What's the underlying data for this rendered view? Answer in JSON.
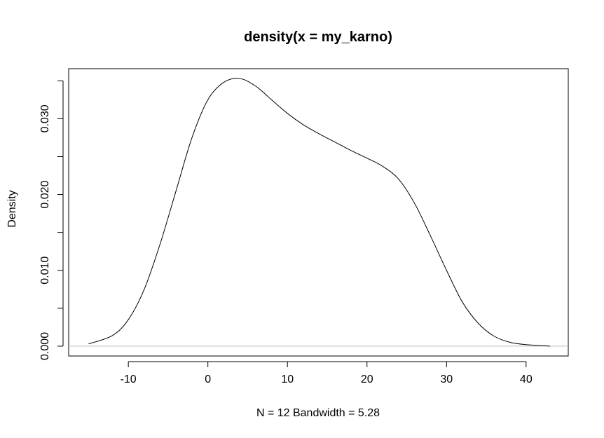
{
  "chart_data": {
    "type": "line",
    "title": "density(x = my_karno)",
    "xlabel": "N = 12   Bandwidth = 5.28",
    "ylabel": "Density",
    "xlim": [
      -17.5,
      45.3
    ],
    "ylim": [
      -0.0013,
      0.0366
    ],
    "x_ticks": [
      -10,
      0,
      10,
      20,
      30,
      40
    ],
    "x_tick_labels": [
      "-10",
      "0",
      "10",
      "20",
      "30",
      "40"
    ],
    "y_ticks": [
      0.0,
      0.005,
      0.01,
      0.015,
      0.02,
      0.025,
      0.03,
      0.035
    ],
    "y_tick_labels": [
      "0.000",
      "",
      "0.010",
      "",
      "0.020",
      "",
      "0.030",
      ""
    ],
    "baseline": 0,
    "grid": false,
    "series": [
      {
        "x": [
          -15,
          -12,
          -10,
          -8,
          -6,
          -4,
          -2,
          0,
          2,
          4,
          6,
          8,
          10,
          12,
          14,
          16,
          18,
          20,
          22,
          24,
          26,
          28,
          30,
          32,
          34,
          36,
          38,
          40,
          43
        ],
        "y": [
          0.0003,
          0.0014,
          0.0035,
          0.0075,
          0.0135,
          0.0205,
          0.0275,
          0.0325,
          0.0348,
          0.0353,
          0.0343,
          0.0325,
          0.0307,
          0.0292,
          0.028,
          0.0269,
          0.0258,
          0.0248,
          0.0237,
          0.022,
          0.0188,
          0.0145,
          0.01,
          0.0058,
          0.003,
          0.0013,
          0.0005,
          0.0002,
          0.0
        ],
        "color": "#000000"
      }
    ]
  }
}
